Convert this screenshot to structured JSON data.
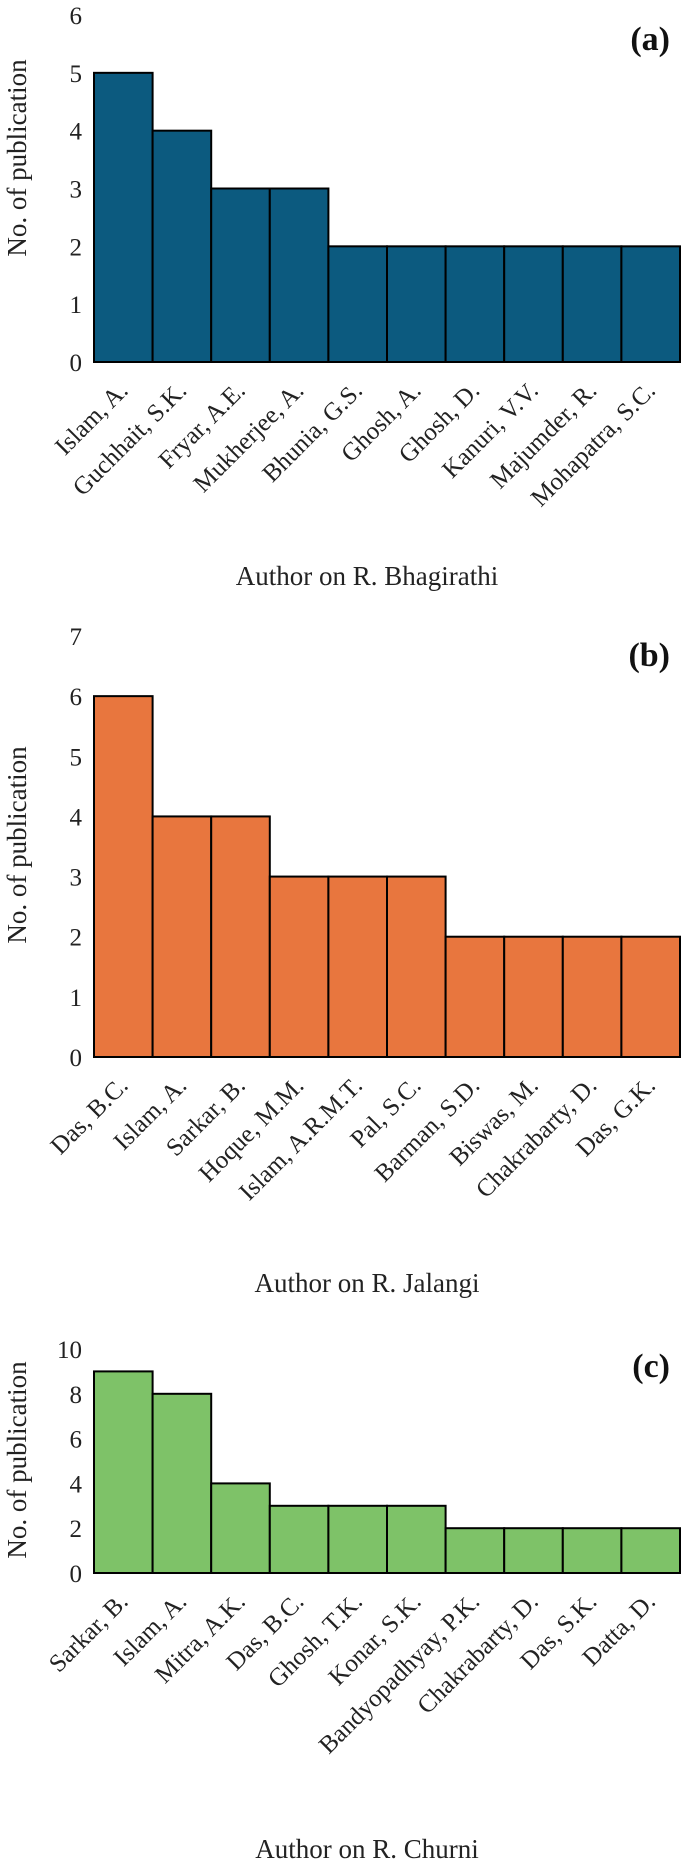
{
  "chart_data": [
    {
      "type": "bar",
      "panel_label": "(a)",
      "color": "#0c5a7f",
      "categories": [
        "Islam, A.",
        "Guchhait, S.K.",
        "Fryar, A.E.",
        "Mukherjee, A.",
        "Bhunia, G.S.",
        "Ghosh, A.",
        "Ghosh, D.",
        "Kanuri, V.V.",
        "Majumder, R.",
        "Mohapatra, S.C."
      ],
      "values": [
        5,
        4,
        3,
        3,
        2,
        2,
        2,
        2,
        2,
        2
      ],
      "ylim": [
        0,
        6
      ],
      "yticks": [
        0,
        1,
        2,
        3,
        4,
        5,
        6
      ],
      "ylabel": "No. of publication",
      "xlabel": "Author on R. Bhagirathi",
      "grid": false
    },
    {
      "type": "bar",
      "panel_label": "(b)",
      "color": "#e8763e",
      "categories": [
        "Das, B.C.",
        "Islam, A.",
        "Sarkar, B.",
        "Hoque, M.M.",
        "Islam, A.R.M.T.",
        "Pal, S.C.",
        "Barman, S.D.",
        "Biswas, M.",
        "Chakrabarty, D.",
        "Das, G.K."
      ],
      "values": [
        6,
        4,
        4,
        3,
        3,
        3,
        2,
        2,
        2,
        2
      ],
      "ylim": [
        0,
        7
      ],
      "yticks": [
        0,
        1,
        2,
        3,
        4,
        5,
        6,
        7
      ],
      "ylabel": "No. of publication",
      "xlabel": "Author on R. Jalangi",
      "grid": false
    },
    {
      "type": "bar",
      "panel_label": "(c)",
      "color": "#7ec268",
      "categories": [
        "Sarkar, B.",
        "Islam, A.",
        "Mitra, A.K.",
        "Das, B.C.",
        "Ghosh, T.K.",
        "Konar, S.K.",
        "Bandyopadhyay, P.K.",
        "Chakrabarty, D.",
        "Das, S.K.",
        "Datta, D."
      ],
      "values": [
        9,
        8,
        4,
        3,
        3,
        3,
        2,
        2,
        2,
        2
      ],
      "ylim": [
        0,
        10
      ],
      "yticks": [
        0,
        2,
        4,
        6,
        8,
        10
      ],
      "ylabel": "No. of publication",
      "xlabel": "Author on R. Churni",
      "grid": false
    }
  ]
}
